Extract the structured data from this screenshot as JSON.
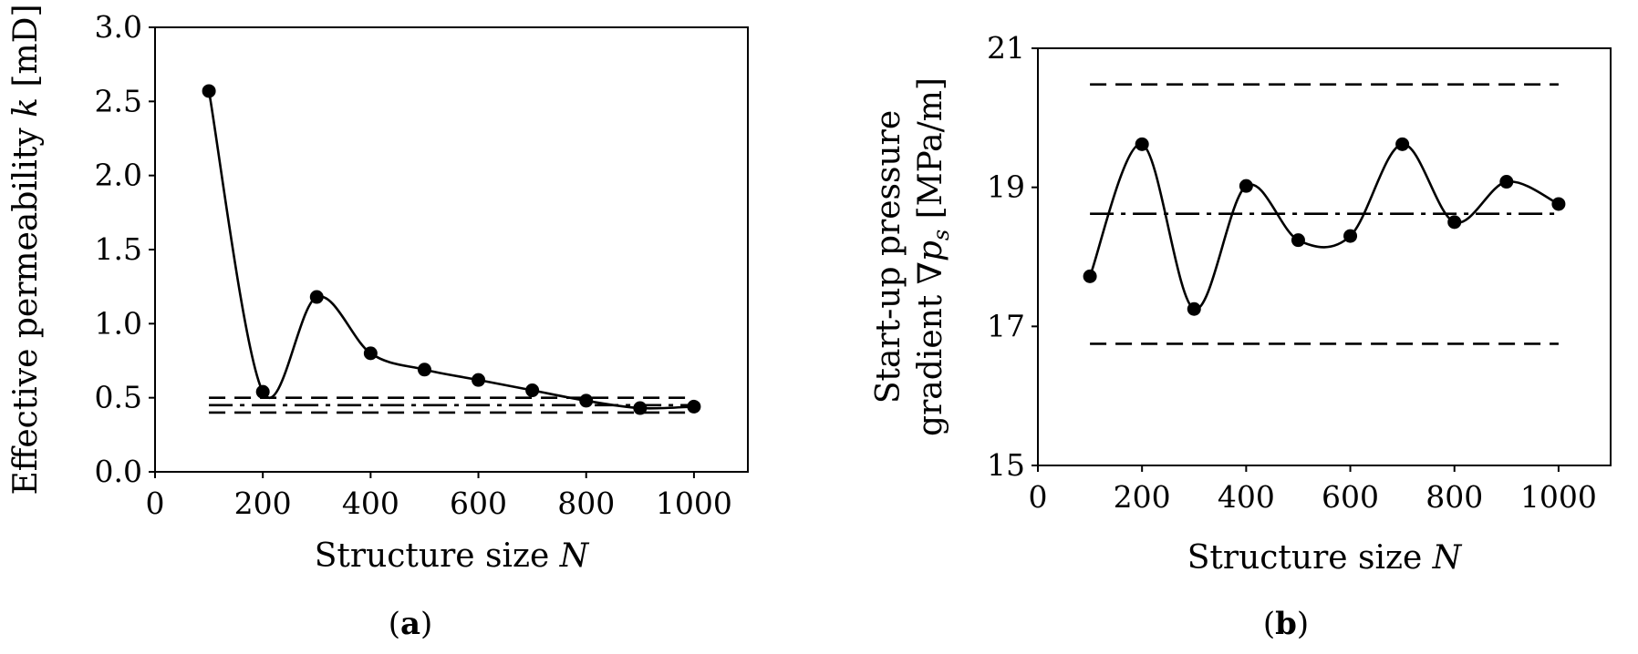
{
  "figure": {
    "panels": [
      {
        "label_open": "(",
        "label": "a",
        "label_close": ")"
      },
      {
        "label_open": "(",
        "label": "b",
        "label_close": ")"
      }
    ]
  },
  "chart_data": [
    {
      "type": "line",
      "xlabel": "Structure size N",
      "ylabel": "Effective permeability k [mD]",
      "xlim": [
        0,
        1100
      ],
      "ylim": [
        0,
        3.0
      ],
      "x_ticks": [
        0,
        200,
        400,
        600,
        800,
        1000
      ],
      "x_tick_labels": [
        "0",
        "200",
        "400",
        "600",
        "800",
        "1000"
      ],
      "y_ticks": [
        0,
        0.5,
        1.0,
        1.5,
        2.0,
        2.5,
        3.0
      ],
      "y_tick_labels": [
        "0.0",
        "0.5",
        "1.0",
        "1.5",
        "2.0",
        "2.5",
        "3.0"
      ],
      "grid": false,
      "legend": "none",
      "series": [
        {
          "style": "solid-smooth-with-markers",
          "x": [
            100,
            200,
            300,
            400,
            500,
            600,
            700,
            800,
            900,
            1000
          ],
          "y": [
            2.57,
            0.54,
            1.18,
            0.8,
            0.69,
            0.62,
            0.55,
            0.48,
            0.43,
            0.44
          ]
        }
      ],
      "reference_lines": [
        {
          "style": "dashed",
          "y": 0.5
        },
        {
          "style": "dash-dot",
          "y": 0.45
        },
        {
          "style": "dashed",
          "y": 0.4
        }
      ]
    },
    {
      "type": "line",
      "xlabel": "Structure size N",
      "ylabel_line1": "Start-up pressure",
      "ylabel_line2": "gradient ∇p_s [MPa/m]",
      "xlim": [
        0,
        1100
      ],
      "ylim": [
        15,
        21
      ],
      "x_ticks": [
        0,
        200,
        400,
        600,
        800,
        1000
      ],
      "x_tick_labels": [
        "0",
        "200",
        "400",
        "600",
        "800",
        "1000"
      ],
      "y_ticks": [
        15,
        17,
        19,
        21
      ],
      "y_tick_labels": [
        "15",
        "17",
        "19",
        "21"
      ],
      "grid": false,
      "legend": "none",
      "series": [
        {
          "style": "solid-smooth-with-markers",
          "x": [
            100,
            200,
            300,
            400,
            500,
            600,
            700,
            800,
            900,
            1000
          ],
          "y": [
            17.72,
            19.62,
            17.25,
            19.02,
            18.24,
            18.3,
            19.62,
            18.5,
            19.08,
            18.76
          ]
        }
      ],
      "reference_lines": [
        {
          "style": "dashed",
          "y": 20.48
        },
        {
          "style": "dash-dot",
          "y": 18.62
        },
        {
          "style": "dashed",
          "y": 16.75
        }
      ]
    }
  ]
}
